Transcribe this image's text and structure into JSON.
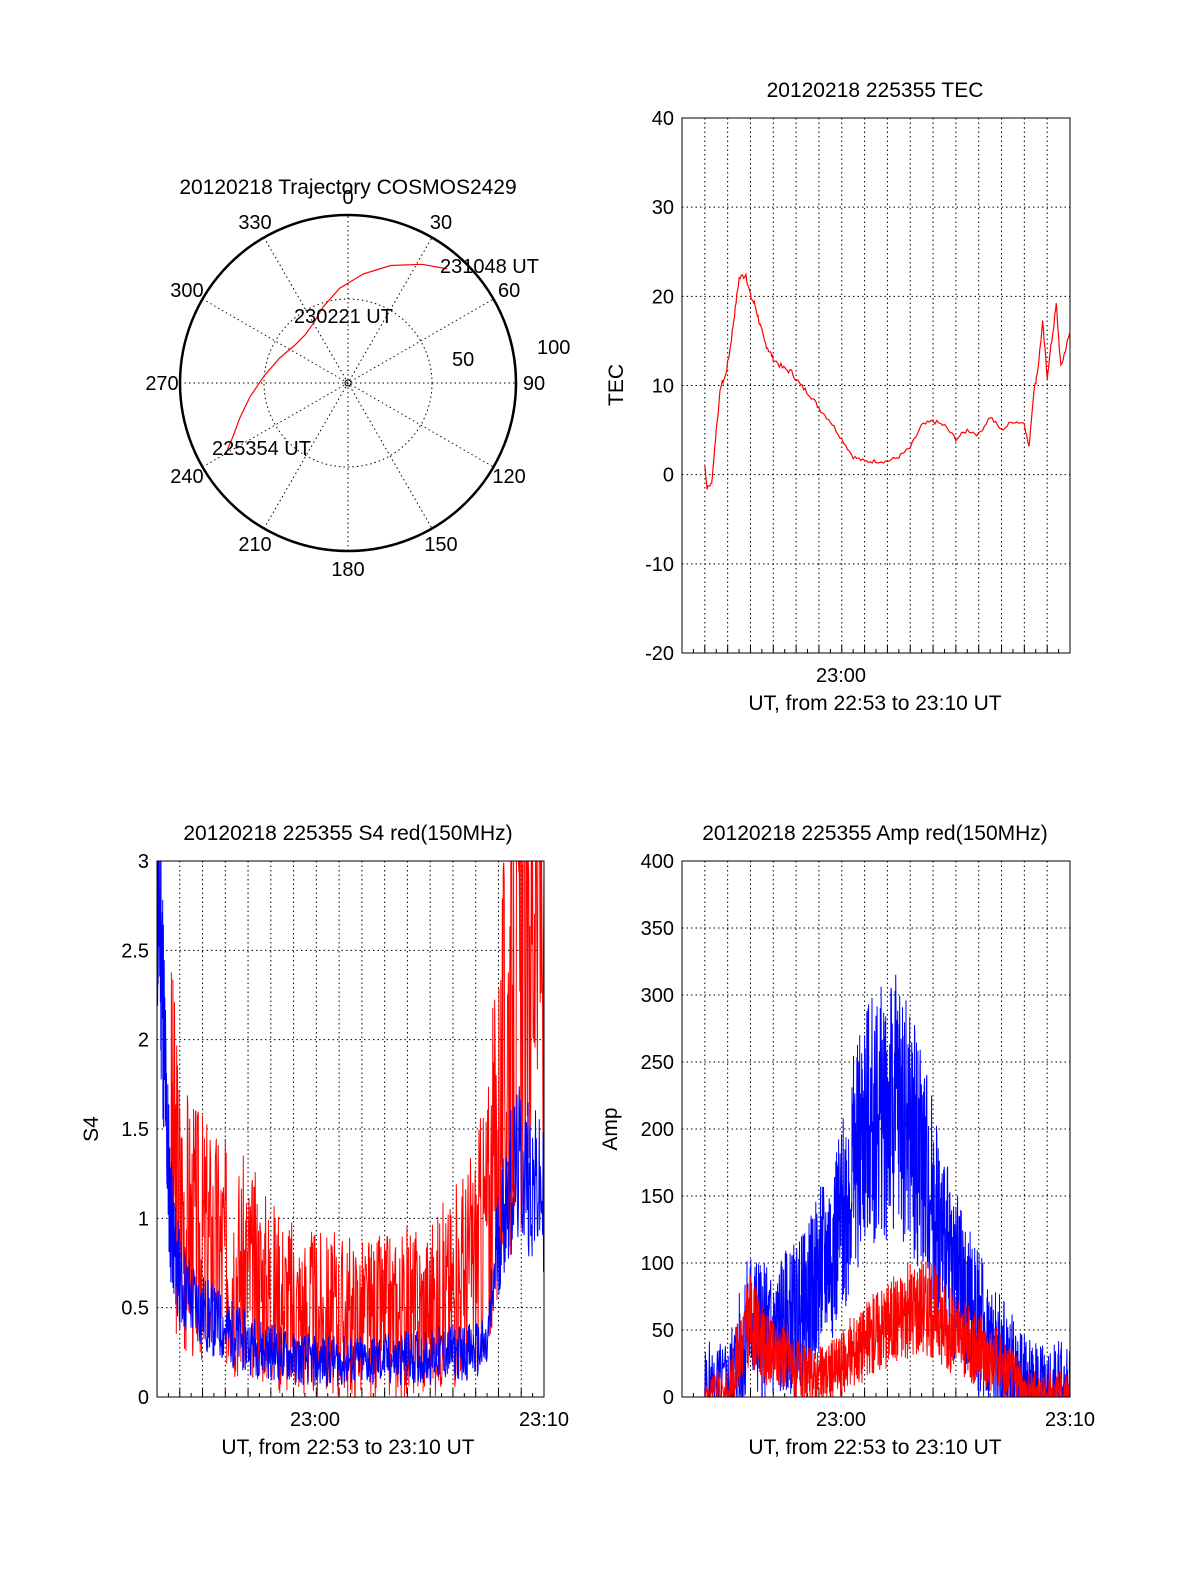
{
  "chart_data": [
    {
      "type": "polar",
      "title": "20120218 Trajectory COSMOS2429",
      "azimuth_labels": [
        "0",
        "30",
        "60",
        "90",
        "120",
        "150",
        "180",
        "210",
        "240",
        "270",
        "300",
        "330"
      ],
      "radial_labels": [
        "50",
        "100"
      ],
      "start_label": "225354 UT",
      "mid_label": "230221 UT",
      "end_label": "231048 UT",
      "track": {
        "azimuth_deg": [
          241,
          245,
          252,
          262,
          275,
          290,
          305,
          318,
          330,
          342,
          355,
          8,
          20,
          32,
          41
        ],
        "zenith_deg": [
          74,
          68,
          61,
          53,
          45,
          39,
          35,
          34.5,
          37,
          43,
          51,
          59,
          67,
          75,
          81
        ]
      },
      "colors": {
        "track": "#ff0000"
      }
    },
    {
      "type": "line",
      "title": "20120218 225355 TEC",
      "ylabel": "TEC",
      "xlabel": "UT, from 22:53 to 23:10 UT",
      "xlim": [
        "22:53",
        "23:10"
      ],
      "ylim": [
        -20,
        40
      ],
      "x_tick_labels": [
        "23:00"
      ],
      "y_tick_labels": [
        "-20",
        "-10",
        "0",
        "10",
        "20",
        "30",
        "40"
      ],
      "series": [
        {
          "color": "#ff0000",
          "x_minutes_from_2253": [
            1,
            1.1,
            1.3,
            1.5,
            1.7,
            1.9,
            2.1,
            2.3,
            2.5,
            2.8,
            3.0,
            3.2,
            3.4,
            3.6,
            3.8,
            4.0,
            4.4,
            4.8,
            5.2,
            5.6,
            6.0,
            6.5,
            7.0,
            7.5,
            8.0,
            8.5,
            9.0,
            9.5,
            10.0,
            10.5,
            11.0,
            11.5,
            12.0,
            12.5,
            13.0,
            13.5,
            14.0,
            14.5,
            15.0,
            15.2,
            15.4,
            15.6,
            15.8,
            16.0,
            16.2,
            16.4,
            16.6,
            16.8,
            17.0
          ],
          "y": [
            1,
            -1.5,
            -1,
            5,
            10,
            11,
            14,
            18,
            22,
            22.5,
            20,
            19,
            17,
            15,
            14,
            13,
            12,
            11.5,
            10,
            9,
            7.5,
            6,
            4,
            2,
            1.5,
            1.5,
            1.5,
            2,
            3,
            5.5,
            6,
            5.5,
            4,
            5,
            4.5,
            6.5,
            5,
            6,
            5.8,
            3,
            9,
            12,
            17,
            11,
            15,
            19,
            12,
            14,
            16
          ]
        }
      ]
    },
    {
      "type": "line",
      "title": "20120218 225355 S4 red(150MHz)",
      "ylabel": "S4",
      "xlabel": "UT, from 22:53 to 23:10 UT",
      "xlim": [
        "22:53",
        "23:10"
      ],
      "ylim": [
        0,
        3
      ],
      "x_tick_labels": [
        "23:00",
        "23:10"
      ],
      "y_tick_labels": [
        "0",
        "0.5",
        "1",
        "1.5",
        "2",
        "2.5",
        "3"
      ],
      "series": [
        {
          "color": "#ff0000",
          "x_minutes_from_2253": [
            0.6,
            1,
            1.5,
            2,
            2.5,
            3,
            3.5,
            4,
            4.5,
            5,
            5.5,
            6,
            6.5,
            7,
            7.5,
            8,
            8.5,
            9,
            9.5,
            10,
            10.5,
            11,
            11.5,
            12,
            12.5,
            13,
            13.5,
            14,
            14.5,
            15,
            15.5,
            16,
            16.5,
            17
          ],
          "y": [
            1.5,
            1.1,
            0.95,
            0.9,
            0.85,
            0.8,
            0.75,
            0.7,
            0.65,
            0.6,
            0.55,
            0.5,
            0.48,
            0.46,
            0.45,
            0.45,
            0.45,
            0.44,
            0.44,
            0.45,
            0.46,
            0.47,
            0.48,
            0.5,
            0.55,
            0.6,
            0.7,
            0.8,
            1.0,
            1.5,
            2.2,
            2.6,
            3.0,
            3.0
          ]
        },
        {
          "color": "#0000ff",
          "x_minutes_from_2253": [
            0,
            0.2,
            0.4,
            0.6,
            0.8,
            1,
            1.5,
            2,
            2.5,
            3,
            3.5,
            4,
            4.5,
            5,
            5.5,
            6,
            6.5,
            7,
            7.5,
            8,
            8.5,
            9,
            9.5,
            10,
            10.5,
            11,
            11.5,
            12,
            12.5,
            13,
            13.5,
            14,
            14.5,
            15,
            15.5,
            16,
            16.5,
            17
          ],
          "y": [
            3.0,
            2.5,
            1.6,
            1.0,
            0.8,
            0.65,
            0.55,
            0.48,
            0.42,
            0.38,
            0.34,
            0.3,
            0.28,
            0.26,
            0.24,
            0.22,
            0.21,
            0.2,
            0.2,
            0.2,
            0.2,
            0.2,
            0.2,
            0.21,
            0.21,
            0.22,
            0.22,
            0.23,
            0.24,
            0.25,
            0.25,
            0.26,
            0.27,
            0.9,
            1.2,
            1.3,
            1.2,
            1.1
          ]
        }
      ]
    },
    {
      "type": "line",
      "title": "20120218 225355 Amp red(150MHz)",
      "ylabel": "Amp",
      "xlabel": "UT, from 22:53 to 23:10 UT",
      "xlim": [
        "22:53",
        "23:10"
      ],
      "ylim": [
        0,
        400
      ],
      "x_tick_labels": [
        "23:00",
        "23:10"
      ],
      "y_tick_labels": [
        "0",
        "50",
        "100",
        "150",
        "200",
        "250",
        "300",
        "350",
        "400"
      ],
      "series": [
        {
          "color": "#0000ff",
          "x_minutes_from_2253": [
            1,
            2,
            2.5,
            3,
            3.5,
            4,
            4.5,
            5,
            5.5,
            6,
            6.5,
            7,
            7.5,
            8,
            8.5,
            9,
            9.5,
            10,
            10.5,
            11,
            11.5,
            12,
            12.5,
            13,
            13.5,
            14,
            14.5,
            15,
            15.5,
            16,
            16.5,
            17
          ],
          "y": [
            2,
            3,
            30,
            60,
            50,
            45,
            55,
            60,
            70,
            90,
            110,
            130,
            170,
            200,
            210,
            215,
            220,
            200,
            180,
            150,
            110,
            90,
            70,
            55,
            40,
            30,
            20,
            5,
            3,
            2,
            2,
            2
          ]
        },
        {
          "color": "#ff0000",
          "x_minutes_from_2253": [
            1,
            2,
            2.5,
            3,
            3.5,
            4,
            4.5,
            5,
            5.5,
            6,
            6.5,
            7,
            7.5,
            8,
            8.5,
            9,
            9.5,
            10,
            10.5,
            11,
            11.5,
            12,
            12.5,
            13,
            13.5,
            14,
            14.5,
            15,
            15.5,
            16,
            16.5,
            17
          ],
          "y": [
            1,
            2,
            35,
            60,
            40,
            30,
            35,
            20,
            15,
            15,
            20,
            25,
            35,
            40,
            50,
            55,
            60,
            65,
            70,
            65,
            55,
            45,
            40,
            35,
            30,
            25,
            15,
            3,
            2,
            1,
            1,
            1
          ]
        }
      ]
    }
  ]
}
